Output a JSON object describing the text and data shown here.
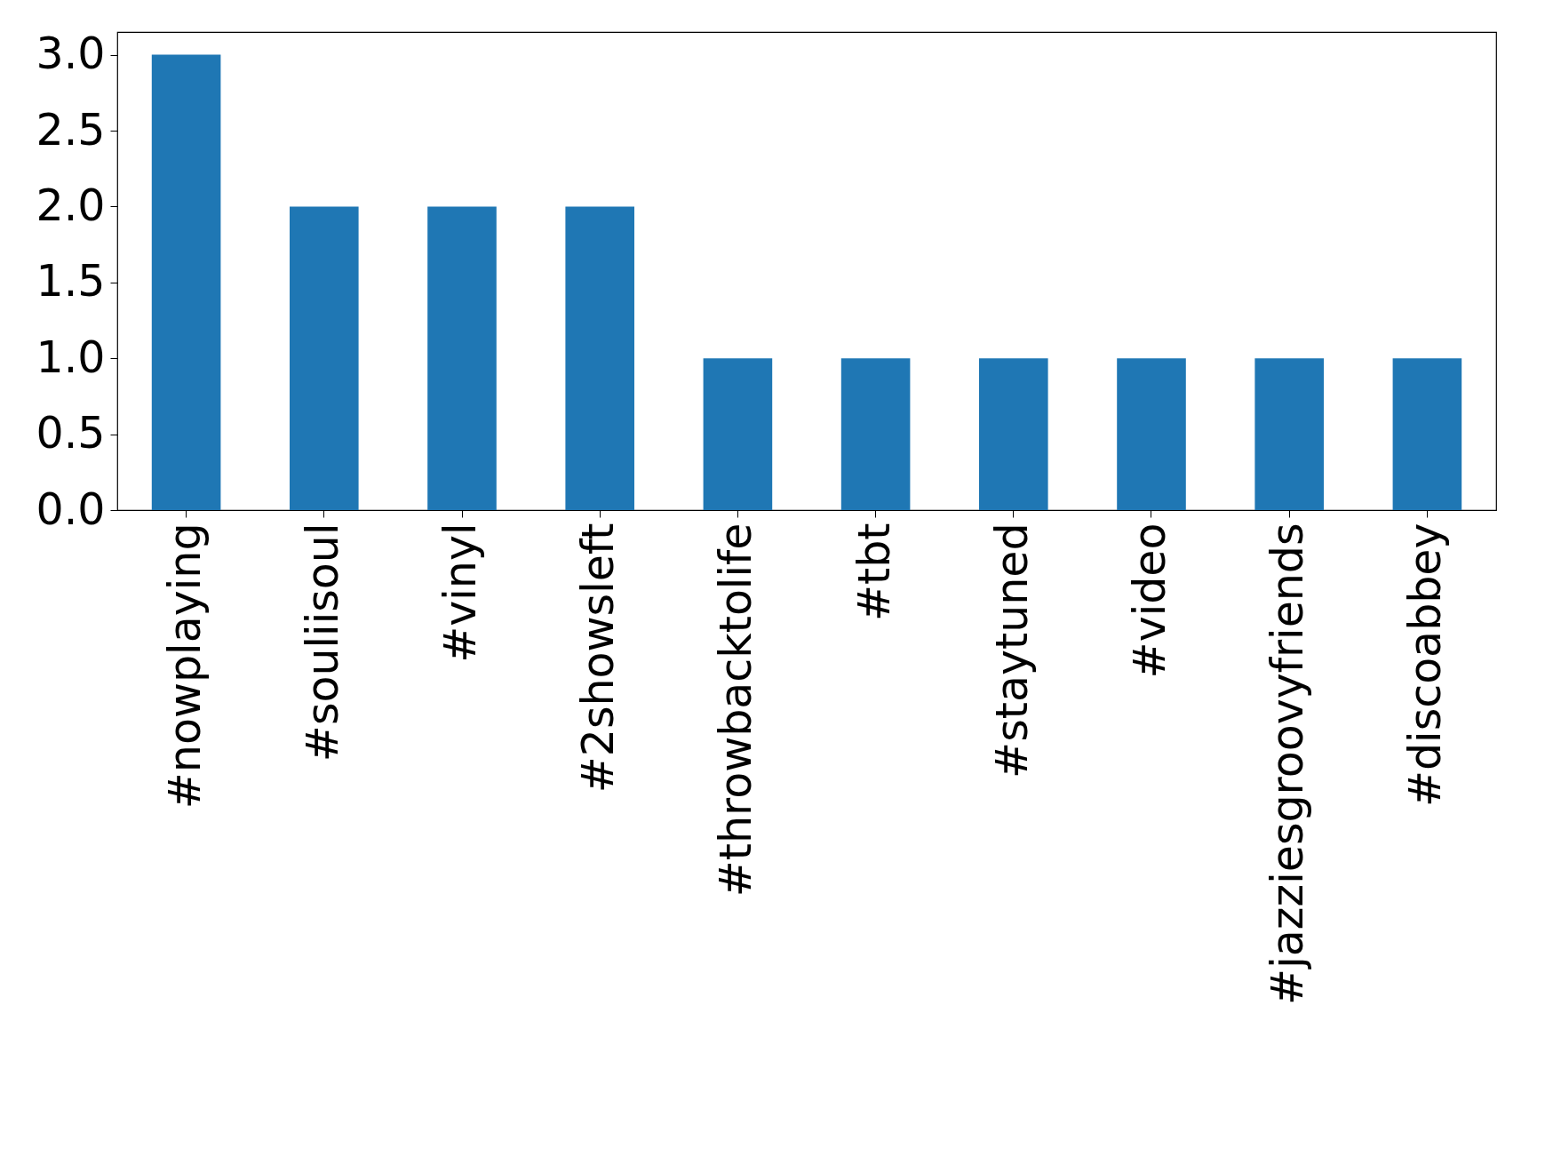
{
  "chart_data": {
    "type": "bar",
    "categories": [
      "#nowplaying",
      "#souliisoul",
      "#vinyl",
      "#2showsleft",
      "#throwbacktolife",
      "#tbt",
      "#staytuned",
      "#video",
      "#jazziesgroovyfriends",
      "#discoabbey"
    ],
    "values": [
      3,
      2,
      2,
      2,
      1,
      1,
      1,
      1,
      1,
      1
    ],
    "color": "#1f77b4",
    "ylim": [
      0,
      3.15
    ],
    "yticks": [
      {
        "value": 0,
        "label": "0.0"
      },
      {
        "value": 0.5,
        "label": "0.5"
      },
      {
        "value": 1,
        "label": "1.0"
      },
      {
        "value": 1.5,
        "label": "1.5"
      },
      {
        "value": 2,
        "label": "2.0"
      },
      {
        "value": 2.5,
        "label": "2.5"
      },
      {
        "value": 3,
        "label": "3.0"
      }
    ],
    "grid": false
  }
}
